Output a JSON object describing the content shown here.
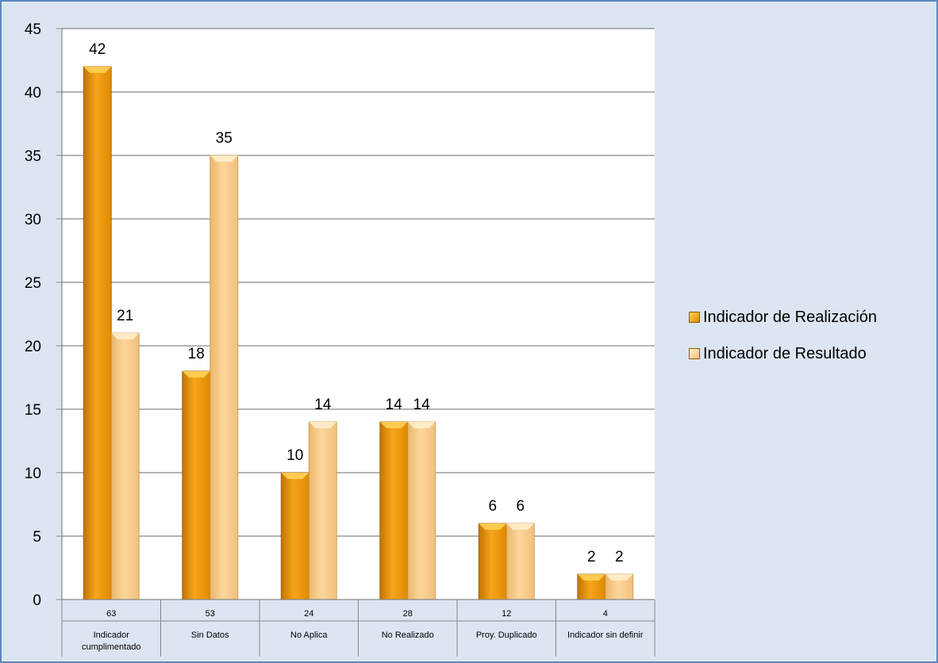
{
  "chart_data": {
    "type": "bar",
    "categories": [
      {
        "count": "63",
        "label_lines": [
          "Indicador",
          "cumplimentado"
        ]
      },
      {
        "count": "53",
        "label_lines": [
          "Sin Datos"
        ]
      },
      {
        "count": "24",
        "label_lines": [
          "No Aplica"
        ]
      },
      {
        "count": "28",
        "label_lines": [
          "No Realizado"
        ]
      },
      {
        "count": "12",
        "label_lines": [
          "Proy. Duplicado"
        ]
      },
      {
        "count": "4",
        "label_lines": [
          "Indicador sin definir"
        ]
      }
    ],
    "series": [
      {
        "name": "Indicador de Realización",
        "values": [
          42,
          18,
          10,
          14,
          6,
          2
        ],
        "color": "#f5a30a"
      },
      {
        "name": "Indicador de Resultado",
        "values": [
          21,
          35,
          14,
          14,
          6,
          2
        ],
        "color": "#fcd08c"
      }
    ],
    "ylim": [
      0,
      45
    ],
    "yticks": [
      0,
      5,
      10,
      15,
      20,
      25,
      30,
      35,
      40,
      45
    ],
    "grid": true,
    "legend_position": "right",
    "data_labels": true,
    "background_color": "#dce6f2",
    "border_color": "#5b87c0"
  }
}
